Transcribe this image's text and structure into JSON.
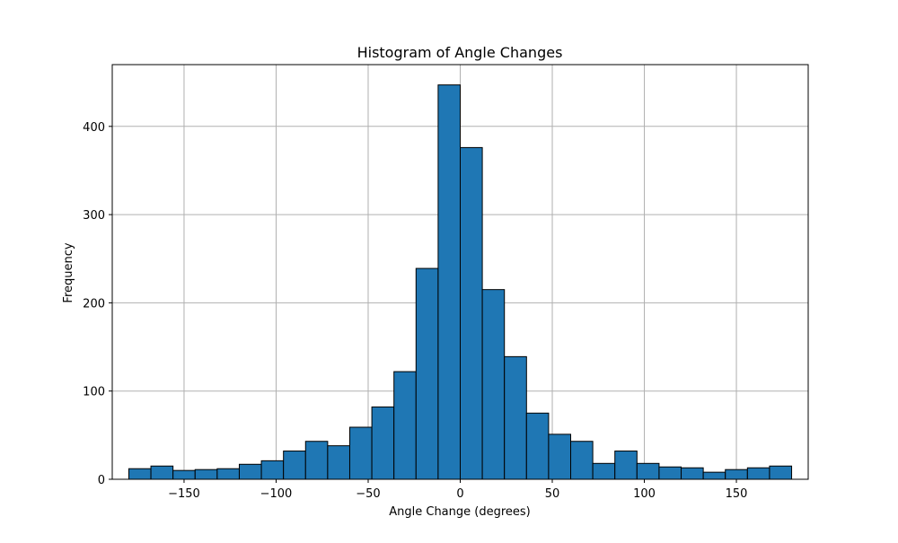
{
  "chart_data": {
    "type": "bar",
    "title": "Histogram of Angle Changes",
    "xlabel": "Angle Change (degrees)",
    "ylabel": "Frequency",
    "xlim": [
      -189,
      189
    ],
    "ylim": [
      0,
      470
    ],
    "grid": true,
    "x_ticks": [
      -150,
      -100,
      -50,
      0,
      50,
      100,
      150
    ],
    "x_tick_labels": [
      "−150",
      "−100",
      "−50",
      "0",
      "50",
      "100",
      "150"
    ],
    "y_ticks": [
      0,
      100,
      200,
      300,
      400
    ],
    "y_tick_labels": [
      "0",
      "100",
      "200",
      "300",
      "400"
    ],
    "bin_start": -180,
    "bin_width": 12,
    "values": [
      12,
      15,
      10,
      11,
      12,
      17,
      21,
      32,
      43,
      38,
      59,
      82,
      122,
      239,
      447,
      376,
      215,
      139,
      75,
      51,
      43,
      18,
      32,
      18,
      14,
      13,
      8,
      11,
      13,
      15
    ],
    "bar_color": "#1f77b4",
    "edge_color": "#000000",
    "grid_color": "#b0b0b0"
  }
}
